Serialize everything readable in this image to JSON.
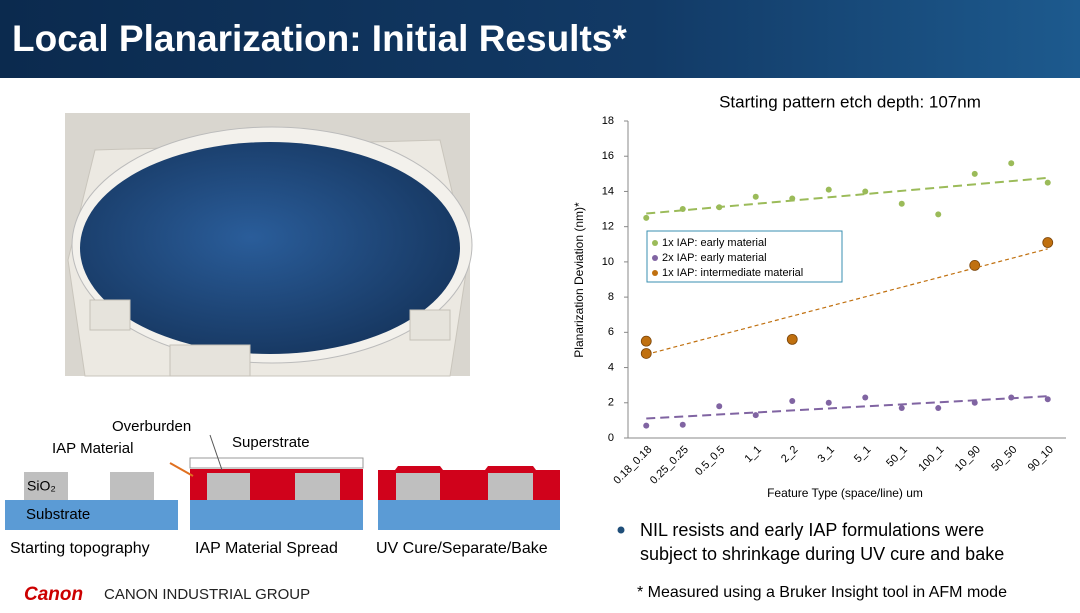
{
  "header": {
    "title": "Local Planarization: Initial Results*"
  },
  "diagram": {
    "overburden": "Overburden",
    "iap_material": "IAP Material",
    "superstrate": "Superstrate",
    "sio2": "SiO₂",
    "substrate": "Substrate",
    "captions": [
      "Starting topography",
      "IAP Material Spread",
      "UV Cure/Separate/Bake"
    ]
  },
  "bullet": [
    "NIL resists and early IAP formulations were",
    "subject to shrinkage during UV cure and bake"
  ],
  "footnote": "* Measured using a Bruker Insight tool in AFM mode",
  "footer": {
    "logo": "Canon",
    "group": "CANON INDUSTRIAL GROUP"
  },
  "chart_data": {
    "type": "scatter",
    "title": "Starting pattern etch depth: 107nm",
    "x_label": "Feature Type (space/line) um",
    "y_label": "Planarization Deviation (nm)*",
    "categories": [
      "0.18_0.18",
      "0.25_0.25",
      "0.5_0.5",
      "1_1",
      "2_2",
      "3_1",
      "5_1",
      "50_1",
      "100_1",
      "10_90",
      "50_50",
      "90_10"
    ],
    "series": [
      {
        "name": "1x IAP: early material",
        "color": "#9bbb59",
        "size": "small",
        "values": [
          12.5,
          13.0,
          13.1,
          13.7,
          13.6,
          14.1,
          14.0,
          13.3,
          12.7,
          15.0,
          15.6,
          14.5
        ]
      },
      {
        "name": "2x IAP: early material",
        "color": "#8064a2",
        "size": "small",
        "values": [
          0.7,
          0.75,
          1.8,
          1.3,
          2.1,
          2.0,
          2.3,
          1.7,
          1.7,
          2.0,
          2.3,
          2.2
        ]
      },
      {
        "name": "1x IAP: intermediate material",
        "color": "#c0700f",
        "size": "large",
        "values": [
          [
            5.5,
            4.8
          ],
          null,
          null,
          null,
          [
            5.6
          ],
          null,
          null,
          null,
          null,
          [
            9.8
          ],
          null,
          [
            11.1
          ]
        ]
      }
    ],
    "trendline": true,
    "grid": false,
    "ylim": [
      0,
      18
    ],
    "yticks": [
      0,
      2,
      4,
      6,
      8,
      10,
      12,
      14,
      16,
      18
    ]
  }
}
